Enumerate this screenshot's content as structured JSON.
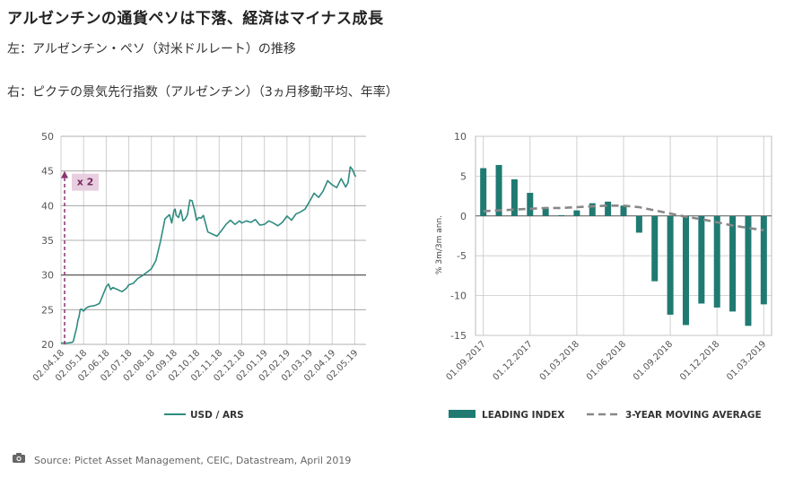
{
  "title": "アルゼンチンの通貨ペソは下落、経済はマイナス成長",
  "subtitle_left": "左：アルゼンチン・ペソ（対米ドルレート）の推移",
  "subtitle_right": "右：ピクテの景気先行指数（アルゼンチン）（3ヵ月移動平均、年率）",
  "source": "Source: Pictet Asset Management, CEIC, Datastream, April 2019",
  "chart_data": [
    {
      "type": "line",
      "x_ticks": [
        "02.04.18",
        "02.05.18",
        "02.06.18",
        "02.07.18",
        "02.08.18",
        "02.09.18",
        "02.10.18",
        "02.11.18",
        "02.12.18",
        "02.01.19",
        "02.02.19",
        "02.03.19",
        "02.04.19",
        "02.05.19"
      ],
      "ylim": [
        20,
        50
      ],
      "y_ticks": [
        20,
        25,
        30,
        35,
        40,
        45,
        50
      ],
      "annotation": "x 2",
      "series": [
        {
          "name": "USD / ARS",
          "color": "#2e8b80",
          "x": [
            0,
            0.3,
            0.5,
            0.55,
            0.6,
            0.7,
            0.75,
            0.8,
            0.85,
            0.9,
            1.0,
            1.1,
            1.2,
            1.3,
            1.5,
            1.7,
            1.9,
            2.0,
            2.1,
            2.2,
            2.3,
            2.5,
            2.7,
            2.9,
            3.0,
            3.1,
            3.2,
            3.4,
            3.6,
            3.8,
            4.0,
            4.2,
            4.4,
            4.6,
            4.8,
            4.9,
            5.0,
            5.05,
            5.1,
            5.2,
            5.3,
            5.4,
            5.5,
            5.6,
            5.7,
            5.8,
            5.9,
            6.0,
            6.1,
            6.2,
            6.3,
            6.5,
            6.7,
            6.9,
            7.1,
            7.3,
            7.5,
            7.7,
            7.9,
            8.0,
            8.2,
            8.4,
            8.6,
            8.8,
            9.0,
            9.2,
            9.4,
            9.6,
            9.8,
            10.0,
            10.2,
            10.4,
            10.6,
            10.8,
            11.0,
            11.2,
            11.4,
            11.6,
            11.8,
            12.0,
            12.2,
            12.4,
            12.6,
            12.7,
            12.8,
            12.9,
            13.0,
            13.05
          ],
          "y": [
            20.2,
            20.2,
            20.3,
            20.5,
            21.2,
            22.5,
            23.5,
            24,
            25,
            25.1,
            24.8,
            25.2,
            25.4,
            25.5,
            25.6,
            25.9,
            27.5,
            28.3,
            28.7,
            27.9,
            28.2,
            27.9,
            27.6,
            28.1,
            28.6,
            28.7,
            28.8,
            29.5,
            29.9,
            30.4,
            30.9,
            32.1,
            34.8,
            38.1,
            38.7,
            37.5,
            39.3,
            39.5,
            38.6,
            38.3,
            39.4,
            37.8,
            38.1,
            38.7,
            40.8,
            40.7,
            39.5,
            37.9,
            38.3,
            38.2,
            38.6,
            36.2,
            35.9,
            35.6,
            36.4,
            37.3,
            37.9,
            37.3,
            37.8,
            37.5,
            37.8,
            37.6,
            38.0,
            37.2,
            37.3,
            37.8,
            37.5,
            37.1,
            37.6,
            38.5,
            37.9,
            38.8,
            39.1,
            39.5,
            40.6,
            41.8,
            41.2,
            42.1,
            43.6,
            43.0,
            42.6,
            43.9,
            42.7,
            43.3,
            45.6,
            45.2,
            44.4,
            44.2
          ]
        }
      ]
    },
    {
      "type": "bar",
      "x_ticks": [
        "01.09.2017",
        "01.12.2017",
        "01.03.2018",
        "01.06.2018",
        "01.09.2018",
        "01.12.2018",
        "01.03.2019"
      ],
      "ylabel": "% 3m/3m ann.",
      "ylim": [
        -15,
        10
      ],
      "y_ticks": [
        10,
        5,
        0,
        -5,
        -10,
        -15
      ],
      "series": [
        {
          "name": "LEADING INDEX",
          "color": "#1f7a72",
          "values": [
            6.0,
            6.4,
            4.6,
            2.9,
            1.0,
            0.1,
            0.7,
            1.6,
            1.8,
            1.3,
            -2.1,
            -8.2,
            -12.4,
            -13.7,
            -11.0,
            -11.5,
            -12.0,
            -13.8,
            -11.1
          ]
        },
        {
          "name": "3-YEAR MOVING AVERAGE",
          "color": "#888888",
          "values": [
            0.6,
            0.7,
            0.8,
            0.9,
            1.0,
            1.0,
            1.1,
            1.2,
            1.3,
            1.3,
            1.1,
            0.7,
            0.3,
            -0.1,
            -0.4,
            -0.8,
            -1.2,
            -1.5,
            -1.8
          ]
        }
      ]
    }
  ]
}
